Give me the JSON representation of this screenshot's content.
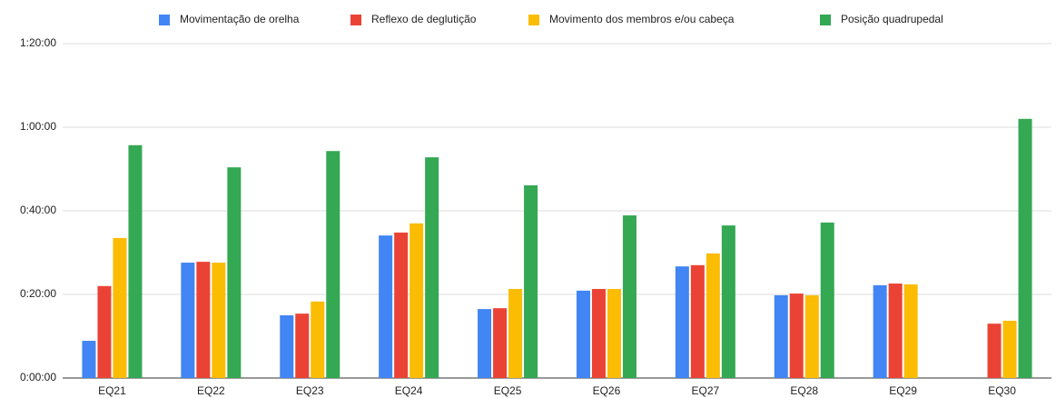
{
  "chart_data": {
    "type": "bar",
    "categories": [
      "EQ21",
      "EQ22",
      "EQ23",
      "EQ24",
      "EQ25",
      "EQ26",
      "EQ27",
      "EQ28",
      "EQ29",
      "EQ30"
    ],
    "series": [
      {
        "name": "Movimentação de orelha",
        "color": "#4285f4",
        "values": [
          8.9,
          27.6,
          15,
          34.1,
          16.5,
          20.9,
          26.7,
          19.8,
          22.2,
          null
        ]
      },
      {
        "name": "Reflexo de deglutição",
        "color": "#ea4335",
        "values": [
          22,
          27.8,
          15.4,
          34.8,
          16.7,
          21.3,
          27,
          20.2,
          22.6,
          13
        ]
      },
      {
        "name": "Movimento dos membros e/ou cabeça",
        "color": "#fbbc04",
        "values": [
          33.5,
          27.6,
          18.3,
          37,
          21.3,
          21.3,
          29.8,
          19.8,
          22.4,
          13.7
        ]
      },
      {
        "name": "Posição quadrupedal",
        "color": "#34a853",
        "values": [
          55.7,
          50.4,
          54.3,
          52.8,
          46.1,
          38.9,
          36.5,
          37.2,
          null,
          62
        ]
      }
    ],
    "ylim": [
      0,
      80
    ],
    "yticks": [
      {
        "value": 0,
        "label": "0:00:00"
      },
      {
        "value": 20,
        "label": "0:20:00"
      },
      {
        "value": 40,
        "label": "0:40:00"
      },
      {
        "value": 60,
        "label": "1:00:00"
      },
      {
        "value": 80,
        "label": "1:20:00"
      }
    ],
    "grid": true,
    "legend": "top"
  }
}
